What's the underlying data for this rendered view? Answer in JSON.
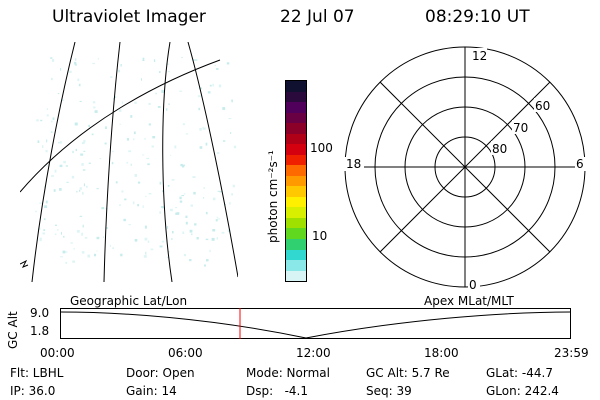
{
  "header": {
    "instrument": "Ultraviolet Imager",
    "date": "22 Jul 07",
    "time": "08:29:10 UT"
  },
  "colorbar": {
    "unit_label": "photon cm⁻²s⁻¹",
    "ticks": [
      "100",
      "10"
    ],
    "colors": [
      "#101030",
      "#2a0a3c",
      "#50005a",
      "#6a0044",
      "#8a0028",
      "#b00018",
      "#d40010",
      "#ee2000",
      "#ff6a00",
      "#ff9a00",
      "#ffc800",
      "#fff000",
      "#d8f000",
      "#a0e000",
      "#60d820",
      "#30d070",
      "#30d8d0",
      "#8ae8e8",
      "#d8f4f4"
    ]
  },
  "polar_plot": {
    "mlt_labels": {
      "top": "12",
      "left": "18",
      "right": "6",
      "bottom": "0"
    },
    "lat_labels": [
      "60",
      "70",
      "80"
    ]
  },
  "altitude_plot": {
    "ylabel": "GC Alt",
    "yticks": [
      "9.0",
      "1.8"
    ],
    "left_title": "Geographic Lat/Lon",
    "right_title": "Apex MLat/MLT",
    "xticks": [
      "00:00",
      "06:00",
      "12:00",
      "18:00",
      "23:59"
    ],
    "cursor_color": "#ff0000"
  },
  "info": {
    "flt": "Flt: LBHL",
    "ip": "IP: 36.0",
    "door": "Door: Open",
    "gain": "Gain: 14",
    "mode": "Mode: Normal",
    "dsp": "Dsp:   -4.1",
    "gcalt": "GC Alt: 5.7 Re",
    "seq": "Seq: 39",
    "glat": "GLat: -44.7",
    "glon": "GLon: 242.4"
  }
}
